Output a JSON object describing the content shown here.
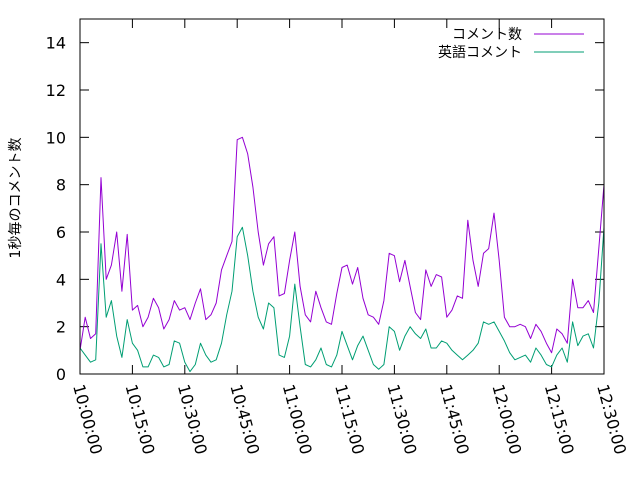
{
  "chart_data": {
    "type": "line",
    "title": "",
    "xlabel": "",
    "ylabel": "1秒毎のコメント数",
    "ylim": [
      0,
      15
    ],
    "yticks": [
      0,
      2,
      4,
      6,
      8,
      10,
      12,
      14
    ],
    "xlim_minutes": [
      0,
      150
    ],
    "xtick_labels": [
      "10:00:00",
      "10:15:00",
      "10:30:00",
      "10:45:00",
      "11:00:00",
      "11:15:00",
      "11:30:00",
      "11:45:00",
      "12:00:00",
      "12:15:00",
      "12:30:00"
    ],
    "xtick_minutes": [
      0,
      15,
      30,
      45,
      60,
      75,
      90,
      105,
      120,
      135,
      150
    ],
    "legend_position": "top-right",
    "grid": false,
    "series": [
      {
        "name": "コメント数",
        "color": "#9400d3",
        "points": [
          [
            0,
            1.0
          ],
          [
            1.5,
            2.4
          ],
          [
            3,
            1.5
          ],
          [
            4.5,
            1.7
          ],
          [
            6,
            8.3
          ],
          [
            7.5,
            4.0
          ],
          [
            9,
            4.6
          ],
          [
            10.5,
            6.0
          ],
          [
            12,
            3.5
          ],
          [
            13.5,
            5.9
          ],
          [
            15,
            2.7
          ],
          [
            16.5,
            2.9
          ],
          [
            18,
            2.0
          ],
          [
            19.5,
            2.4
          ],
          [
            21,
            3.2
          ],
          [
            22.5,
            2.8
          ],
          [
            24,
            1.9
          ],
          [
            25.5,
            2.3
          ],
          [
            27,
            3.1
          ],
          [
            28.5,
            2.7
          ],
          [
            30,
            2.8
          ],
          [
            31.5,
            2.3
          ],
          [
            33,
            3.0
          ],
          [
            34.5,
            3.6
          ],
          [
            36,
            2.3
          ],
          [
            37.5,
            2.5
          ],
          [
            39,
            3.0
          ],
          [
            40.5,
            4.4
          ],
          [
            42,
            5.0
          ],
          [
            43.5,
            5.6
          ],
          [
            45,
            9.9
          ],
          [
            46.5,
            10.0
          ],
          [
            48,
            9.3
          ],
          [
            49.5,
            7.9
          ],
          [
            51,
            6.0
          ],
          [
            52.5,
            4.6
          ],
          [
            54,
            5.5
          ],
          [
            55.5,
            5.8
          ],
          [
            57,
            3.3
          ],
          [
            58.5,
            3.4
          ],
          [
            60,
            4.8
          ],
          [
            61.5,
            6.0
          ],
          [
            63,
            3.7
          ],
          [
            64.5,
            2.5
          ],
          [
            66,
            2.2
          ],
          [
            67.5,
            3.5
          ],
          [
            69,
            2.8
          ],
          [
            70.5,
            2.2
          ],
          [
            72,
            2.1
          ],
          [
            73.5,
            3.4
          ],
          [
            75,
            4.5
          ],
          [
            76.5,
            4.6
          ],
          [
            78,
            3.8
          ],
          [
            79.5,
            4.5
          ],
          [
            81,
            3.2
          ],
          [
            82.5,
            2.5
          ],
          [
            84,
            2.4
          ],
          [
            85.5,
            2.1
          ],
          [
            87,
            3.1
          ],
          [
            88.5,
            5.1
          ],
          [
            90,
            5.0
          ],
          [
            91.5,
            3.9
          ],
          [
            93,
            4.8
          ],
          [
            94.5,
            3.7
          ],
          [
            96,
            2.6
          ],
          [
            97.5,
            2.3
          ],
          [
            99,
            4.4
          ],
          [
            100.5,
            3.7
          ],
          [
            102,
            4.2
          ],
          [
            103.5,
            4.1
          ],
          [
            105,
            2.4
          ],
          [
            106.5,
            2.7
          ],
          [
            108,
            3.3
          ],
          [
            109.5,
            3.2
          ],
          [
            111,
            6.5
          ],
          [
            112.5,
            4.8
          ],
          [
            114,
            3.7
          ],
          [
            115.5,
            5.1
          ],
          [
            117,
            5.3
          ],
          [
            118.5,
            6.8
          ],
          [
            120,
            4.8
          ],
          [
            121.5,
            2.4
          ],
          [
            123,
            2.0
          ],
          [
            124.5,
            2.0
          ],
          [
            126,
            2.1
          ],
          [
            127.5,
            2.0
          ],
          [
            129,
            1.5
          ],
          [
            130.5,
            2.1
          ],
          [
            132,
            1.8
          ],
          [
            133.5,
            1.3
          ],
          [
            135,
            0.9
          ],
          [
            136.5,
            1.9
          ],
          [
            138,
            1.7
          ],
          [
            139.5,
            1.3
          ],
          [
            141,
            4.0
          ],
          [
            142.5,
            2.8
          ],
          [
            144,
            2.8
          ],
          [
            145.5,
            3.1
          ],
          [
            147,
            2.6
          ],
          [
            148.5,
            5.3
          ],
          [
            150,
            8.0
          ]
        ]
      },
      {
        "name": "英語コメント",
        "color": "#009e73",
        "points": [
          [
            0,
            1.1
          ],
          [
            1.5,
            0.8
          ],
          [
            3,
            0.5
          ],
          [
            4.5,
            0.6
          ],
          [
            6,
            5.5
          ],
          [
            7.5,
            2.4
          ],
          [
            9,
            3.1
          ],
          [
            10.5,
            1.6
          ],
          [
            12,
            0.7
          ],
          [
            13.5,
            2.3
          ],
          [
            15,
            1.3
          ],
          [
            16.5,
            1.0
          ],
          [
            18,
            0.3
          ],
          [
            19.5,
            0.3
          ],
          [
            21,
            0.8
          ],
          [
            22.5,
            0.7
          ],
          [
            24,
            0.3
          ],
          [
            25.5,
            0.4
          ],
          [
            27,
            1.4
          ],
          [
            28.5,
            1.3
          ],
          [
            30,
            0.5
          ],
          [
            31.5,
            0.1
          ],
          [
            33,
            0.4
          ],
          [
            34.5,
            1.3
          ],
          [
            36,
            0.8
          ],
          [
            37.5,
            0.5
          ],
          [
            39,
            0.6
          ],
          [
            40.5,
            1.3
          ],
          [
            42,
            2.5
          ],
          [
            43.5,
            3.5
          ],
          [
            45,
            5.8
          ],
          [
            46.5,
            6.2
          ],
          [
            48,
            5.0
          ],
          [
            49.5,
            3.5
          ],
          [
            51,
            2.4
          ],
          [
            52.5,
            1.9
          ],
          [
            54,
            3.0
          ],
          [
            55.5,
            2.8
          ],
          [
            57,
            0.8
          ],
          [
            58.5,
            0.7
          ],
          [
            60,
            1.6
          ],
          [
            61.5,
            3.8
          ],
          [
            63,
            2.0
          ],
          [
            64.5,
            0.4
          ],
          [
            66,
            0.3
          ],
          [
            67.5,
            0.6
          ],
          [
            69,
            1.1
          ],
          [
            70.5,
            0.4
          ],
          [
            72,
            0.3
          ],
          [
            73.5,
            0.8
          ],
          [
            75,
            1.8
          ],
          [
            76.5,
            1.2
          ],
          [
            78,
            0.6
          ],
          [
            79.5,
            1.2
          ],
          [
            81,
            1.6
          ],
          [
            82.5,
            1.0
          ],
          [
            84,
            0.4
          ],
          [
            85.5,
            0.2
          ],
          [
            87,
            0.4
          ],
          [
            88.5,
            2.0
          ],
          [
            90,
            1.8
          ],
          [
            91.5,
            1.0
          ],
          [
            93,
            1.6
          ],
          [
            94.5,
            2.0
          ],
          [
            96,
            1.7
          ],
          [
            97.5,
            1.5
          ],
          [
            99,
            1.9
          ],
          [
            100.5,
            1.1
          ],
          [
            102,
            1.1
          ],
          [
            103.5,
            1.4
          ],
          [
            105,
            1.3
          ],
          [
            106.5,
            1.0
          ],
          [
            108,
            0.8
          ],
          [
            109.5,
            0.6
          ],
          [
            111,
            0.8
          ],
          [
            112.5,
            1.0
          ],
          [
            114,
            1.3
          ],
          [
            115.5,
            2.2
          ],
          [
            117,
            2.1
          ],
          [
            118.5,
            2.2
          ],
          [
            120,
            1.8
          ],
          [
            121.5,
            1.4
          ],
          [
            123,
            0.9
          ],
          [
            124.5,
            0.6
          ],
          [
            126,
            0.7
          ],
          [
            127.5,
            0.8
          ],
          [
            129,
            0.5
          ],
          [
            130.5,
            1.1
          ],
          [
            132,
            0.8
          ],
          [
            133.5,
            0.4
          ],
          [
            135,
            0.3
          ],
          [
            136.5,
            0.8
          ],
          [
            138,
            1.1
          ],
          [
            139.5,
            0.5
          ],
          [
            141,
            2.2
          ],
          [
            142.5,
            1.2
          ],
          [
            144,
            1.6
          ],
          [
            145.5,
            1.7
          ],
          [
            147,
            1.1
          ],
          [
            148.5,
            3.0
          ],
          [
            150,
            6.2
          ]
        ]
      }
    ]
  }
}
